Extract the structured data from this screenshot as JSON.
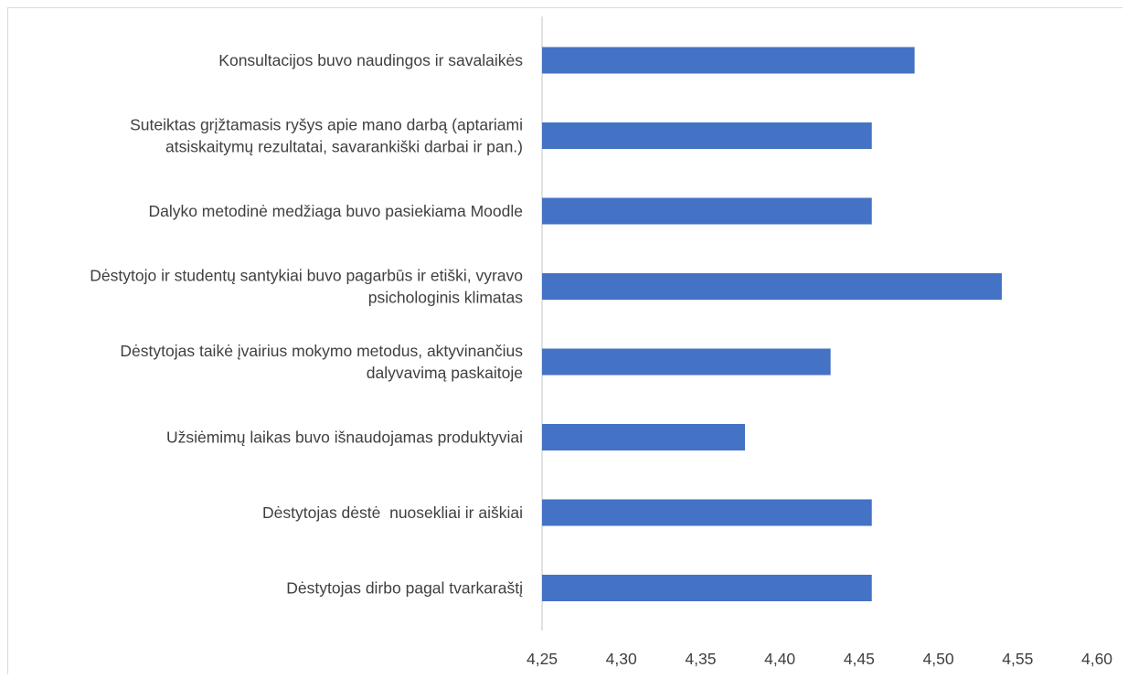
{
  "chart_data": {
    "type": "bar",
    "orientation": "horizontal",
    "categories": [
      [
        "Konsultacijos buvo naudingos ir savalaikės"
      ],
      [
        "Suteiktas grįžtamasis ryšys apie mano darbą (aptariami",
        "atsiskaitymų rezultatai, savarankiški darbai ir pan.)"
      ],
      [
        "Dalyko metodinė medžiaga buvo pasiekiama Moodle"
      ],
      [
        "Dėstytojo ir studentų santykiai buvo pagarbūs ir etiški, vyravo",
        "psichologinis klimatas"
      ],
      [
        "Dėstytojas taikė įvairius mokymo metodus, aktyvinančius",
        "dalyvavimą paskaitoje"
      ],
      [
        "Užsiėmimų laikas buvo išnaudojamas produktyviai"
      ],
      [
        "Dėstytojas dėstė  nuosekliai ir aiškiai"
      ],
      [
        "Dėstytojas dirbo pagal tvarkaraštį"
      ]
    ],
    "values": [
      4.485,
      4.458,
      4.458,
      4.54,
      4.432,
      4.378,
      4.458,
      4.458
    ],
    "xlim": [
      4.25,
      4.6
    ],
    "xticks": [
      "4,25",
      "4,30",
      "4,35",
      "4,40",
      "4,45",
      "4,50",
      "4,55",
      "4,60"
    ],
    "xtick_values": [
      4.25,
      4.3,
      4.35,
      4.4,
      4.45,
      4.5,
      4.55,
      4.6
    ],
    "bar_color": "#4472c4",
    "grid": false,
    "title": "",
    "xlabel": "",
    "ylabel": ""
  }
}
